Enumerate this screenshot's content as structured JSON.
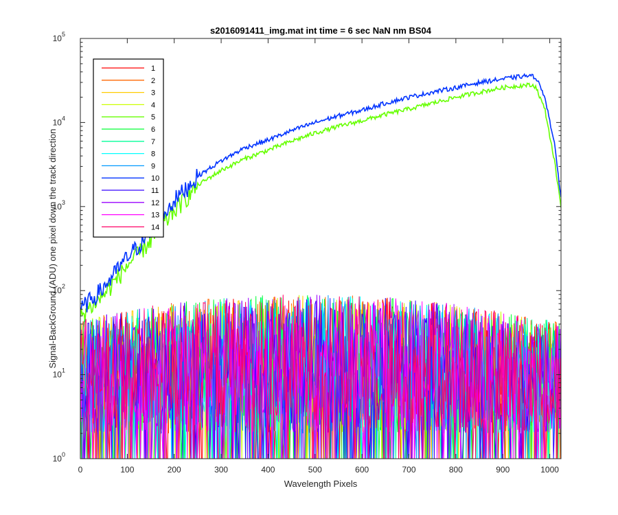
{
  "chart_data": {
    "type": "line",
    "title": "s2016091411_img.mat int time = 6 sec  NaN nm BS04",
    "xlabel": "Wavelength Pixels",
    "ylabel": "Signal-BackGround (ADU) one pixel down the track direction",
    "xlim": [
      0,
      1024
    ],
    "ylim": [
      1,
      100000
    ],
    "yscale": "log",
    "x_ticks": [
      "0",
      "100",
      "200",
      "300",
      "400",
      "500",
      "600",
      "700",
      "800",
      "900",
      "1000"
    ],
    "y_ticks": [
      {
        "base": "10",
        "exp": "0"
      },
      {
        "base": "10",
        "exp": "1"
      },
      {
        "base": "10",
        "exp": "2"
      },
      {
        "base": "10",
        "exp": "3"
      },
      {
        "base": "10",
        "exp": "4"
      },
      {
        "base": "10",
        "exp": "5"
      }
    ],
    "legend_location": "top-left",
    "grid": false,
    "series": [
      {
        "name": "1",
        "color": "#ff0000",
        "kind": "noise"
      },
      {
        "name": "2",
        "color": "#ff6600",
        "kind": "noise"
      },
      {
        "name": "3",
        "color": "#ffcc00",
        "kind": "noise"
      },
      {
        "name": "4",
        "color": "#ccff00",
        "kind": "noise"
      },
      {
        "name": "5",
        "color": "#66ff00",
        "kind": "signal",
        "x": [
          0,
          50,
          100,
          150,
          200,
          250,
          300,
          350,
          400,
          450,
          500,
          550,
          600,
          650,
          700,
          750,
          800,
          850,
          900,
          950,
          970,
          990,
          1010,
          1024
        ],
        "y": [
          50,
          90,
          200,
          400,
          900,
          1800,
          2700,
          3700,
          4700,
          6000,
          7500,
          9000,
          10500,
          12500,
          14500,
          17000,
          20000,
          23000,
          26000,
          28000,
          27000,
          14000,
          3500,
          1000
        ]
      },
      {
        "name": "6",
        "color": "#00ff33",
        "kind": "noise"
      },
      {
        "name": "7",
        "color": "#00ff99",
        "kind": "noise"
      },
      {
        "name": "8",
        "color": "#00ffff",
        "kind": "noise"
      },
      {
        "name": "9",
        "color": "#0099ff",
        "kind": "noise"
      },
      {
        "name": "10",
        "color": "#0033ff",
        "kind": "signal",
        "x": [
          0,
          50,
          100,
          150,
          200,
          250,
          300,
          350,
          400,
          450,
          500,
          550,
          600,
          650,
          700,
          750,
          800,
          850,
          900,
          950,
          970,
          990,
          1010,
          1024
        ],
        "y": [
          60,
          110,
          250,
          500,
          1200,
          2300,
          3500,
          5000,
          6200,
          8000,
          10000,
          12000,
          14000,
          17000,
          20000,
          23000,
          26000,
          30000,
          33000,
          36000,
          35000,
          20000,
          5500,
          1300
        ]
      },
      {
        "name": "11",
        "color": "#3300ff",
        "kind": "noise"
      },
      {
        "name": "12",
        "color": "#9900ff",
        "kind": "noise"
      },
      {
        "name": "13",
        "color": "#ff00ff",
        "kind": "noise"
      },
      {
        "name": "14",
        "color": "#ff0066",
        "kind": "noise"
      }
    ]
  }
}
